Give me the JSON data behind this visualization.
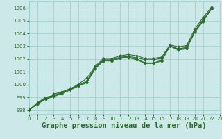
{
  "background_color": "#cce8e8",
  "grid_color": "#99cccc",
  "line_color": "#2d6a2d",
  "xlabel": "Graphe pression niveau de la mer (hPa)",
  "xlim": [
    0,
    23
  ],
  "ylim": [
    997.7,
    1006.5
  ],
  "yticks": [
    998,
    999,
    1000,
    1001,
    1002,
    1003,
    1004,
    1005,
    1006
  ],
  "xticks": [
    0,
    1,
    2,
    3,
    4,
    5,
    6,
    7,
    8,
    9,
    10,
    11,
    12,
    13,
    14,
    15,
    16,
    17,
    18,
    19,
    20,
    21,
    22,
    23
  ],
  "series": [
    {
      "x": [
        0,
        1,
        2,
        3,
        3,
        4,
        5,
        6,
        7,
        8,
        9,
        10,
        11,
        12,
        13,
        14,
        15,
        16,
        17,
        18,
        19,
        20,
        21,
        22
      ],
      "y": [
        998.0,
        998.55,
        998.95,
        999.15,
        999.25,
        999.45,
        999.65,
        1000.05,
        1000.5,
        1001.45,
        1002.05,
        1002.05,
        1002.25,
        1002.35,
        1002.25,
        1002.05,
        1002.05,
        1002.15,
        1003.1,
        1002.95,
        1003.05,
        1004.35,
        1005.25,
        1006.05
      ]
    },
    {
      "x": [
        0,
        1,
        2,
        3,
        4,
        5,
        6,
        7,
        8,
        9,
        10,
        11,
        12,
        13,
        14,
        15,
        16,
        17,
        18,
        19,
        20,
        21,
        22
      ],
      "y": [
        998.0,
        998.55,
        999.0,
        999.15,
        999.4,
        999.7,
        999.95,
        1000.3,
        1001.4,
        1001.95,
        1001.95,
        1002.15,
        1002.2,
        1002.1,
        1001.95,
        1001.95,
        1002.05,
        1003.0,
        1002.8,
        1002.9,
        1004.2,
        1005.1,
        1005.95
      ]
    },
    {
      "x": [
        0,
        1,
        2,
        3,
        4,
        5,
        6,
        7,
        8,
        9,
        10,
        11,
        12,
        13,
        14,
        15,
        16,
        17,
        18,
        19,
        20,
        21,
        22
      ],
      "y": [
        998.0,
        998.5,
        998.9,
        999.1,
        999.35,
        999.62,
        999.92,
        1000.2,
        1001.3,
        1001.9,
        1001.9,
        1002.1,
        1002.15,
        1002.0,
        1001.7,
        1001.7,
        1001.9,
        1003.05,
        1002.75,
        1002.85,
        1004.15,
        1005.0,
        1005.95
      ]
    },
    {
      "x": [
        0,
        1,
        2,
        3,
        4,
        5,
        6,
        7,
        8,
        9,
        10,
        11,
        12,
        13,
        14,
        15,
        16,
        17,
        18,
        19,
        20,
        21,
        22
      ],
      "y": [
        998.0,
        998.45,
        998.85,
        999.05,
        999.3,
        999.58,
        999.88,
        1000.15,
        1001.25,
        1001.85,
        1001.85,
        1002.05,
        1002.1,
        1001.95,
        1001.65,
        1001.65,
        1001.85,
        1003.0,
        1002.7,
        1002.8,
        1004.1,
        1004.95,
        1005.9
      ]
    }
  ]
}
